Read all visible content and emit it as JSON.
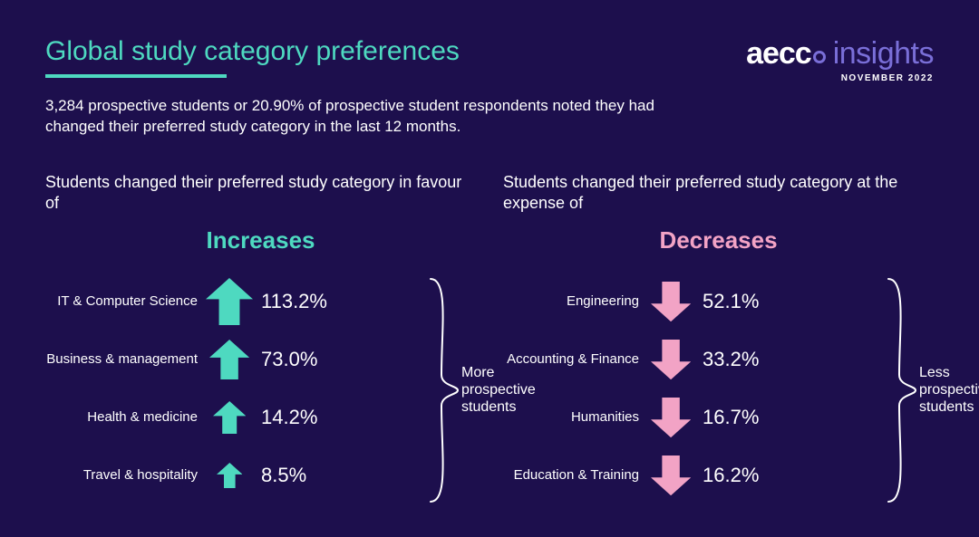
{
  "colors": {
    "background": "#1d0f4d",
    "accent_teal": "#4ed9c0",
    "accent_pink": "#f2a3c5",
    "logo_purple": "#7a6fd8",
    "text": "#ffffff"
  },
  "header": {
    "title": "Global study category preferences",
    "subtitle": "3,284 prospective students or 20.90% of prospective student respondents noted they had changed their preferred study category in the last 12 months."
  },
  "brand": {
    "name_a": "aecc",
    "name_b": "insights",
    "date": "NOVEMBER 2022"
  },
  "increases": {
    "intro": "Students changed their preferred study category in favour of",
    "label": "Increases",
    "summary": "More prospective students",
    "arrow": {
      "color": "#4ed9c0",
      "direction": "up",
      "base_scale": 1.0
    },
    "items": [
      {
        "category": "IT & Computer Science",
        "value": "113.2%",
        "scale": 1.0
      },
      {
        "category": "Business & management",
        "value": "73.0%",
        "scale": 0.85
      },
      {
        "category": "Health & medicine",
        "value": "14.2%",
        "scale": 0.7
      },
      {
        "category": "Travel & hospitality",
        "value": "8.5%",
        "scale": 0.55
      }
    ]
  },
  "decreases": {
    "intro": "Students changed their preferred study category at the expense of",
    "label": "Decreases",
    "summary": "Less prospective students",
    "arrow": {
      "color": "#f2a3c5",
      "direction": "down",
      "base_scale": 0.85
    },
    "items": [
      {
        "category": "Engineering",
        "value": "52.1%",
        "scale": 0.85
      },
      {
        "category": "Accounting & Finance",
        "value": "33.2%",
        "scale": 0.85
      },
      {
        "category": "Humanities",
        "value": "16.7%",
        "scale": 0.85
      },
      {
        "category": "Education & Training",
        "value": "16.2%",
        "scale": 0.85
      }
    ]
  }
}
